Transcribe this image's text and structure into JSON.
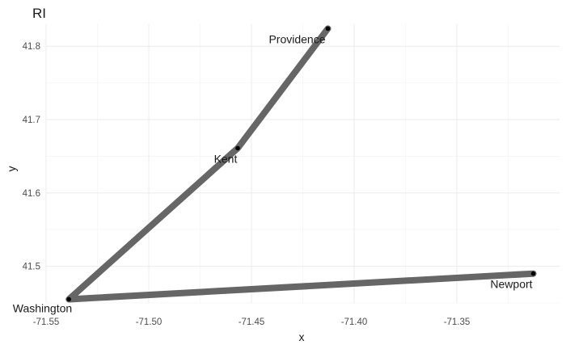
{
  "chart_data": {
    "type": "line",
    "title": "RI",
    "xlabel": "x",
    "ylabel": "y",
    "xlim": [
      -71.55,
      -71.3
    ],
    "ylim": [
      41.45,
      41.83
    ],
    "x_ticks": [
      "-71.55",
      "-71.50",
      "-71.45",
      "-71.40",
      "-71.35"
    ],
    "y_ticks": [
      "41.5",
      "41.6",
      "41.7",
      "41.8"
    ],
    "grid": true,
    "line_color": "#666666",
    "point_color": "#000000",
    "points": [
      {
        "label": "Providence",
        "x": -71.4128,
        "y": 41.824
      },
      {
        "label": "Kent",
        "x": -71.4567,
        "y": 41.661
      },
      {
        "label": "Washington",
        "x": -71.5389,
        "y": 41.455
      },
      {
        "label": "Newport",
        "x": -71.3128,
        "y": 41.49
      }
    ],
    "path_order": [
      "Providence",
      "Kent",
      "Washington",
      "Newport"
    ]
  }
}
